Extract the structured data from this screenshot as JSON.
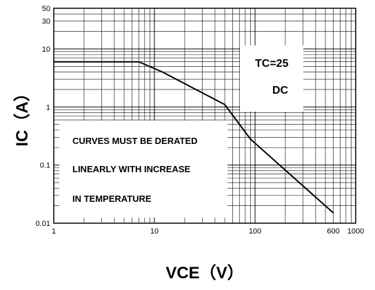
{
  "chart_data": {
    "type": "line",
    "x_scale": "log",
    "y_scale": "log",
    "xlim": [
      1,
      1000
    ],
    "ylim": [
      0.01,
      50
    ],
    "xlabel": "VCE（V）",
    "ylabel": "IC（A）",
    "x_ticks": [
      {
        "value": 1,
        "label": "1"
      },
      {
        "value": 10,
        "label": "10"
      },
      {
        "value": 100,
        "label": "100"
      },
      {
        "value": 600,
        "label": "600"
      },
      {
        "value": 1000,
        "label": "1000"
      }
    ],
    "y_ticks": [
      {
        "value": 0.01,
        "label": "0.01"
      },
      {
        "value": 0.1,
        "label": "0.1"
      },
      {
        "value": 1,
        "label": "1"
      },
      {
        "value": 10,
        "label": "10"
      },
      {
        "value": 30,
        "label": "30"
      },
      {
        "value": 50,
        "label": "50"
      }
    ],
    "grid": true,
    "series": [
      {
        "x": [
          1,
          7,
          12,
          50,
          90,
          600
        ],
        "y": [
          6,
          6,
          4,
          1.1,
          0.28,
          0.015
        ]
      }
    ],
    "annotations": {
      "conditions": [
        "TC=25",
        "DC"
      ],
      "note": [
        "CURVES MUST BE DERATED",
        "LINEARLY WITH  INCREASE",
        "IN TEMPERATURE"
      ]
    },
    "colors": {
      "line": "#000000",
      "grid": "#000000",
      "background": "#ffffff"
    }
  }
}
